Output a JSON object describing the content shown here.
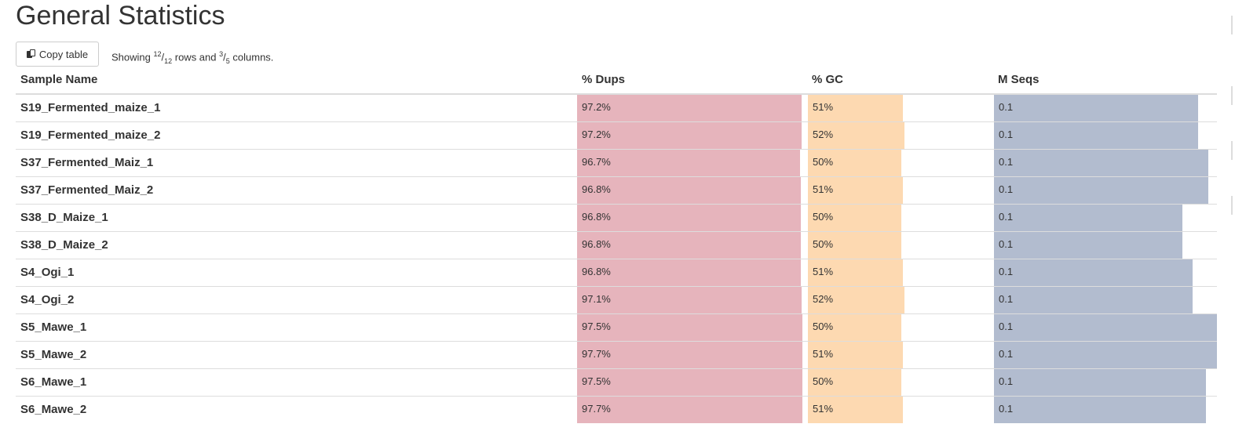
{
  "page": {
    "title": "General Statistics"
  },
  "toolbar": {
    "copy_label": "Copy table",
    "showing_prefix": "Showing ",
    "rows_shown": "12",
    "rows_total": "12",
    "rows_word": " rows and ",
    "cols_shown": "3",
    "cols_total": "5",
    "cols_word": " columns."
  },
  "table": {
    "headers": {
      "sample": "Sample Name",
      "dups": "% Dups",
      "gc": "% GC",
      "seqs": "M Seqs"
    },
    "colors": {
      "dups": "#e6b4bc",
      "gc": "#fdd9b1",
      "seqs": "#b2bccf"
    },
    "rows": [
      {
        "name": "S19_Fermented_maize_1",
        "dups": "97.2%",
        "gc": "51%",
        "seqs": "0.1",
        "dups_frac": 0.9965,
        "gc_frac": 0.531,
        "seqs_frac": 0.915
      },
      {
        "name": "S19_Fermented_maize_2",
        "dups": "97.2%",
        "gc": "52%",
        "seqs": "0.1",
        "dups_frac": 0.9965,
        "gc_frac": 0.541,
        "seqs_frac": 0.915
      },
      {
        "name": "S37_Fermented_Maiz_1",
        "dups": "96.7%",
        "gc": "50%",
        "seqs": "0.1",
        "dups_frac": 0.991,
        "gc_frac": 0.52,
        "seqs_frac": 0.961
      },
      {
        "name": "S37_Fermented_Maiz_2",
        "dups": "96.8%",
        "gc": "51%",
        "seqs": "0.1",
        "dups_frac": 0.992,
        "gc_frac": 0.531,
        "seqs_frac": 0.961
      },
      {
        "name": "S38_D_Maize_1",
        "dups": "96.8%",
        "gc": "50%",
        "seqs": "0.1",
        "dups_frac": 0.992,
        "gc_frac": 0.52,
        "seqs_frac": 0.845
      },
      {
        "name": "S38_D_Maize_2",
        "dups": "96.8%",
        "gc": "50%",
        "seqs": "0.1",
        "dups_frac": 0.992,
        "gc_frac": 0.52,
        "seqs_frac": 0.845
      },
      {
        "name": "S4_Ogi_1",
        "dups": "96.8%",
        "gc": "51%",
        "seqs": "0.1",
        "dups_frac": 0.992,
        "gc_frac": 0.531,
        "seqs_frac": 0.891
      },
      {
        "name": "S4_Ogi_2",
        "dups": "97.1%",
        "gc": "52%",
        "seqs": "0.1",
        "dups_frac": 0.9955,
        "gc_frac": 0.541,
        "seqs_frac": 0.891
      },
      {
        "name": "S5_Mawe_1",
        "dups": "97.5%",
        "gc": "50%",
        "seqs": "0.1",
        "dups_frac": 0.9995,
        "gc_frac": 0.52,
        "seqs_frac": 1.0
      },
      {
        "name": "S5_Mawe_2",
        "dups": "97.7%",
        "gc": "51%",
        "seqs": "0.1",
        "dups_frac": 1.0,
        "gc_frac": 0.531,
        "seqs_frac": 1.0
      },
      {
        "name": "S6_Mawe_1",
        "dups": "97.5%",
        "gc": "50%",
        "seqs": "0.1",
        "dups_frac": 0.9995,
        "gc_frac": 0.52,
        "seqs_frac": 0.95
      },
      {
        "name": "S6_Mawe_2",
        "dups": "97.7%",
        "gc": "51%",
        "seqs": "0.1",
        "dups_frac": 1.0,
        "gc_frac": 0.531,
        "seqs_frac": 0.95
      }
    ]
  }
}
